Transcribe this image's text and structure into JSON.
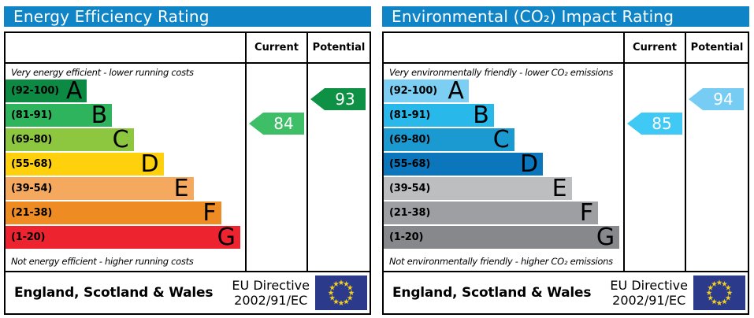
{
  "colors": {
    "header_bg": "#0f85c8",
    "eu_flag_bg": "#2c3a8c",
    "eu_star": "#f2cf1c",
    "arrow_text": "#ffffff"
  },
  "chart_data": [
    {
      "type": "bar",
      "title": "Energy Efficiency Rating",
      "columns": [
        "Current",
        "Potential"
      ],
      "top_caption": "Very energy efficient - lower running costs",
      "bottom_caption": "Not energy efficient - higher running costs",
      "bands": [
        {
          "letter": "A",
          "range_label": "(92-100)",
          "range": [
            92,
            100
          ],
          "color": "#0c8a43",
          "width_pct": 34
        },
        {
          "letter": "B",
          "range_label": "(81-91)",
          "range": [
            81,
            91
          ],
          "color": "#2eb45c",
          "width_pct": 44.5
        },
        {
          "letter": "C",
          "range_label": "(69-80)",
          "range": [
            69,
            80
          ],
          "color": "#8dc63f",
          "width_pct": 53.5
        },
        {
          "letter": "D",
          "range_label": "(55-68)",
          "range": [
            55,
            68
          ],
          "color": "#fed10c",
          "width_pct": 66
        },
        {
          "letter": "E",
          "range_label": "(39-54)",
          "range": [
            39,
            54
          ],
          "color": "#f5a95f",
          "width_pct": 78.5
        },
        {
          "letter": "F",
          "range_label": "(21-38)",
          "range": [
            21,
            38
          ],
          "color": "#ef8b23",
          "width_pct": 90
        },
        {
          "letter": "G",
          "range_label": "(1-20)",
          "range": [
            1,
            20
          ],
          "color": "#ee2330",
          "width_pct": 98
        }
      ],
      "current": {
        "value": 84,
        "band": "B",
        "band_index": 1,
        "color": "#3fbe68"
      },
      "potential": {
        "value": 93,
        "band": "A",
        "band_index": 0,
        "color": "#0e9144"
      },
      "footer": {
        "region": "England, Scotland & Wales",
        "directive": [
          "EU Directive",
          "2002/91/EC"
        ]
      }
    },
    {
      "type": "bar",
      "title": "Environmental (CO₂) Impact Rating",
      "columns": [
        "Current",
        "Potential"
      ],
      "top_caption": "Very environmentally friendly - lower CO₂ emissions",
      "bottom_caption": "Not environmentally friendly - higher CO₂ emissions",
      "bands": [
        {
          "letter": "A",
          "range_label": "(92-100)",
          "range": [
            92,
            100
          ],
          "color": "#7ccff2",
          "width_pct": 35.5
        },
        {
          "letter": "B",
          "range_label": "(81-91)",
          "range": [
            81,
            91
          ],
          "color": "#29b8ea",
          "width_pct": 46
        },
        {
          "letter": "C",
          "range_label": "(69-80)",
          "range": [
            69,
            80
          ],
          "color": "#1b9ad2",
          "width_pct": 54.5
        },
        {
          "letter": "D",
          "range_label": "(55-68)",
          "range": [
            55,
            68
          ],
          "color": "#0b76bb",
          "width_pct": 66.5
        },
        {
          "letter": "E",
          "range_label": "(39-54)",
          "range": [
            39,
            54
          ],
          "color": "#bdbec0",
          "width_pct": 78.5
        },
        {
          "letter": "F",
          "range_label": "(21-38)",
          "range": [
            21,
            38
          ],
          "color": "#9d9fa2",
          "width_pct": 89.5
        },
        {
          "letter": "G",
          "range_label": "(1-20)",
          "range": [
            1,
            20
          ],
          "color": "#87888b",
          "width_pct": 98.4
        }
      ],
      "current": {
        "value": 85,
        "band": "B",
        "band_index": 1,
        "color": "#41c9f6"
      },
      "potential": {
        "value": 94,
        "band": "A",
        "band_index": 0,
        "color": "#76ccf3"
      },
      "footer": {
        "region": "England, Scotland & Wales",
        "directive": [
          "EU Directive",
          "2002/91/EC"
        ]
      }
    }
  ]
}
